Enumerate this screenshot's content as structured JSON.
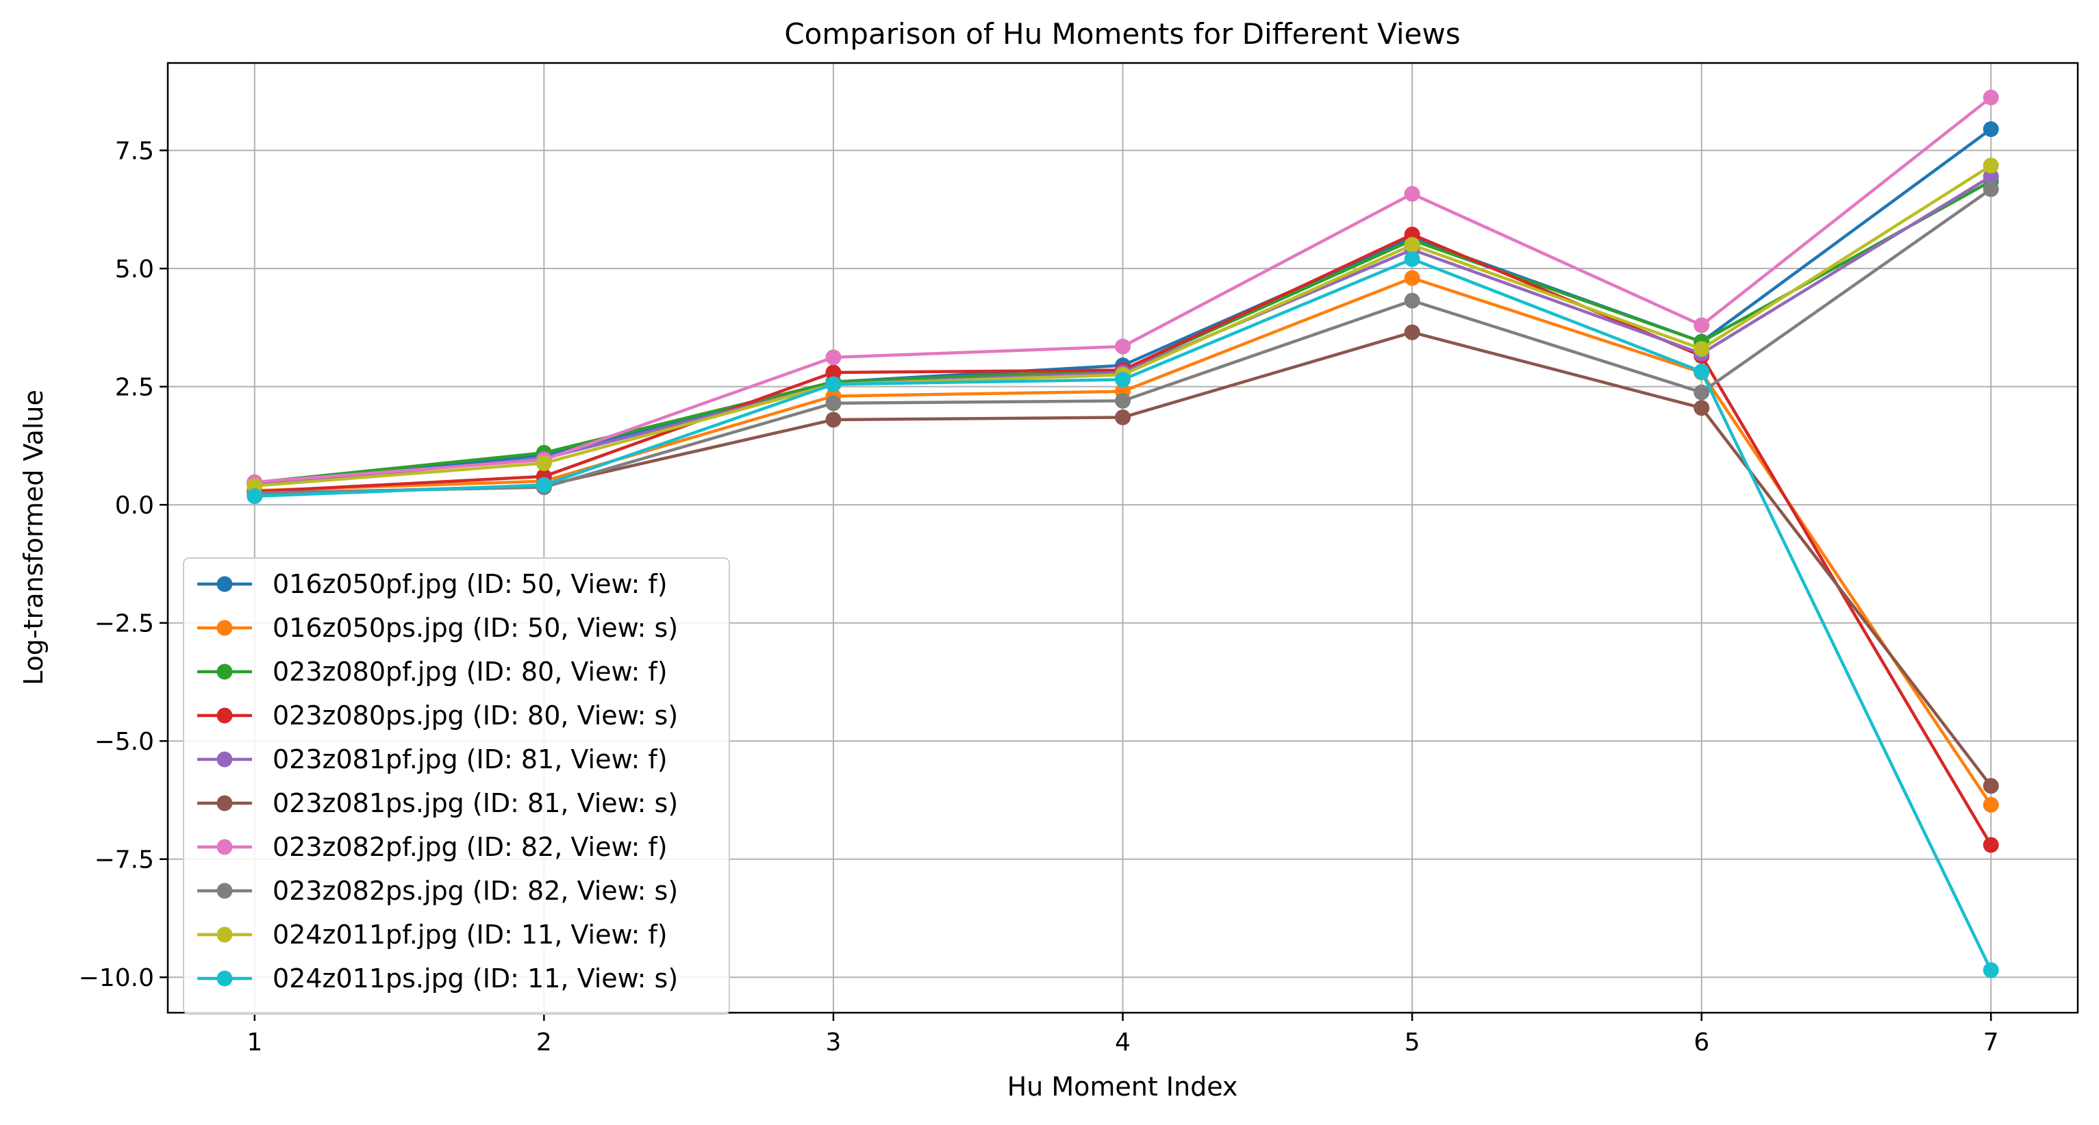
{
  "chart_data": {
    "type": "line",
    "title": "Comparison of Hu Moments for Different Views",
    "xlabel": "Hu Moment Index",
    "ylabel": "Log-transformed Value",
    "x": [
      1,
      2,
      3,
      4,
      5,
      6,
      7
    ],
    "xlim": [
      0.7,
      7.3
    ],
    "ylim": [
      -10.75,
      9.35
    ],
    "x_ticks": [
      1,
      2,
      3,
      4,
      5,
      6,
      7
    ],
    "y_ticks": [
      -10.0,
      -7.5,
      -5.0,
      -2.5,
      0.0,
      2.5,
      5.0,
      7.5
    ],
    "y_tick_labels": [
      "−10.0",
      "−7.5",
      "−5.0",
      "−2.5",
      "0.0",
      "2.5",
      "5.0",
      "7.5"
    ],
    "grid": true,
    "legend_position": "lower-left",
    "series": [
      {
        "name": "016z050pf.jpg (ID: 50, View: f)",
        "color": "#1f77b4",
        "values": [
          0.45,
          1.05,
          2.6,
          2.95,
          5.65,
          3.45,
          7.95
        ]
      },
      {
        "name": "016z050ps.jpg (ID: 50, View: s)",
        "color": "#ff7f0e",
        "values": [
          0.3,
          0.5,
          2.3,
          2.4,
          4.8,
          2.8,
          -6.35
        ]
      },
      {
        "name": "023z080pf.jpg (ID: 80, View: f)",
        "color": "#2ca02c",
        "values": [
          0.47,
          1.1,
          2.6,
          2.85,
          5.6,
          3.45,
          6.85
        ]
      },
      {
        "name": "023z080ps.jpg (ID: 80, View: s)",
        "color": "#d62728",
        "values": [
          0.28,
          0.6,
          2.8,
          2.85,
          5.72,
          3.15,
          -7.2
        ]
      },
      {
        "name": "023z081pf.jpg (ID: 81, View: f)",
        "color": "#9467bd",
        "values": [
          0.42,
          0.98,
          2.55,
          2.8,
          5.4,
          3.2,
          6.95
        ]
      },
      {
        "name": "023z081ps.jpg (ID: 81, View: s)",
        "color": "#8c564b",
        "values": [
          0.22,
          0.4,
          1.8,
          1.85,
          3.65,
          2.05,
          -5.95
        ]
      },
      {
        "name": "023z082pf.jpg (ID: 82, View: f)",
        "color": "#e377c2",
        "values": [
          0.48,
          0.95,
          3.12,
          3.35,
          6.58,
          3.8,
          8.62
        ]
      },
      {
        "name": "023z082ps.jpg (ID: 82, View: s)",
        "color": "#7f7f7f",
        "values": [
          0.25,
          0.37,
          2.15,
          2.2,
          4.32,
          2.38,
          6.68
        ]
      },
      {
        "name": "024z011pf.jpg (ID: 11, View: f)",
        "color": "#bcbd22",
        "values": [
          0.4,
          0.88,
          2.55,
          2.75,
          5.5,
          3.3,
          7.18
        ]
      },
      {
        "name": "024z011ps.jpg (ID: 11, View: s)",
        "color": "#17becf",
        "values": [
          0.18,
          0.42,
          2.55,
          2.65,
          5.2,
          2.82,
          -9.85
        ]
      }
    ]
  }
}
